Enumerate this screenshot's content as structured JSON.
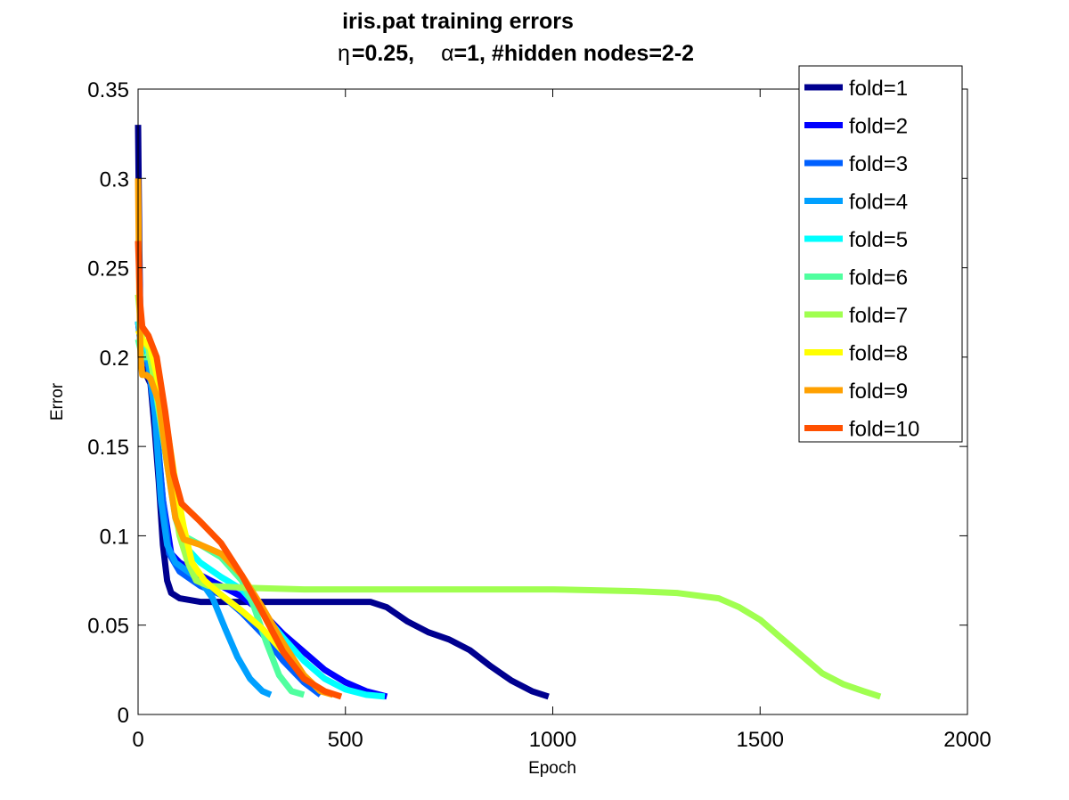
{
  "chart_data": {
    "type": "line",
    "title": "iris.pat training errors",
    "subtitle": {
      "eta_symbol": "η",
      "eta_value": "=0.25,",
      "alpha_symbol": "α",
      "alpha_value": "=1, #hidden nodes=2-2"
    },
    "xlabel": "Epoch",
    "ylabel": "Error",
    "xlim": [
      0,
      2000
    ],
    "ylim": [
      0,
      0.35
    ],
    "xticks": [
      0,
      500,
      1000,
      1500,
      2000
    ],
    "xtick_labels": [
      "0",
      "500",
      "1000",
      "1500",
      "2000"
    ],
    "yticks": [
      0,
      0.05,
      0.1,
      0.15,
      0.2,
      0.25,
      0.3,
      0.35
    ],
    "ytick_labels": [
      "0",
      "0.05",
      "0.1",
      "0.15",
      "0.2",
      "0.25",
      "0.3",
      "0.35"
    ],
    "grid": false,
    "legend_position": "top-right",
    "series": [
      {
        "name": "fold=1",
        "color": "#00008F",
        "points": [
          [
            0,
            0.33
          ],
          [
            3,
            0.26
          ],
          [
            6,
            0.21
          ],
          [
            10,
            0.195
          ],
          [
            20,
            0.19
          ],
          [
            30,
            0.185
          ],
          [
            40,
            0.16
          ],
          [
            50,
            0.13
          ],
          [
            60,
            0.095
          ],
          [
            70,
            0.075
          ],
          [
            80,
            0.068
          ],
          [
            100,
            0.065
          ],
          [
            150,
            0.063
          ],
          [
            300,
            0.063
          ],
          [
            500,
            0.063
          ],
          [
            560,
            0.063
          ],
          [
            600,
            0.06
          ],
          [
            650,
            0.052
          ],
          [
            700,
            0.046
          ],
          [
            750,
            0.042
          ],
          [
            800,
            0.036
          ],
          [
            850,
            0.027
          ],
          [
            900,
            0.019
          ],
          [
            950,
            0.013
          ],
          [
            990,
            0.01
          ]
        ]
      },
      {
        "name": "fold=2",
        "color": "#0000FF",
        "points": [
          [
            0,
            0.22
          ],
          [
            10,
            0.2
          ],
          [
            25,
            0.198
          ],
          [
            40,
            0.17
          ],
          [
            60,
            0.12
          ],
          [
            80,
            0.09
          ],
          [
            100,
            0.085
          ],
          [
            150,
            0.078
          ],
          [
            200,
            0.072
          ],
          [
            250,
            0.066
          ],
          [
            300,
            0.057
          ],
          [
            350,
            0.045
          ],
          [
            400,
            0.035
          ],
          [
            450,
            0.025
          ],
          [
            500,
            0.018
          ],
          [
            550,
            0.013
          ],
          [
            600,
            0.01
          ]
        ]
      },
      {
        "name": "fold=3",
        "color": "#0060FF",
        "points": [
          [
            0,
            0.22
          ],
          [
            10,
            0.2
          ],
          [
            25,
            0.195
          ],
          [
            45,
            0.16
          ],
          [
            60,
            0.12
          ],
          [
            75,
            0.09
          ],
          [
            100,
            0.08
          ],
          [
            150,
            0.072
          ],
          [
            200,
            0.067
          ],
          [
            250,
            0.057
          ],
          [
            300,
            0.045
          ],
          [
            350,
            0.03
          ],
          [
            400,
            0.018
          ],
          [
            440,
            0.011
          ]
        ]
      },
      {
        "name": "fold=4",
        "color": "#00A0FF",
        "points": [
          [
            0,
            0.22
          ],
          [
            10,
            0.2
          ],
          [
            25,
            0.198
          ],
          [
            40,
            0.17
          ],
          [
            55,
            0.12
          ],
          [
            70,
            0.095
          ],
          [
            90,
            0.085
          ],
          [
            120,
            0.08
          ],
          [
            150,
            0.075
          ],
          [
            180,
            0.065
          ],
          [
            210,
            0.048
          ],
          [
            240,
            0.032
          ],
          [
            270,
            0.02
          ],
          [
            300,
            0.013
          ],
          [
            320,
            0.011
          ]
        ]
      },
      {
        "name": "fold=5",
        "color": "#00FFFF",
        "points": [
          [
            0,
            0.22
          ],
          [
            10,
            0.21
          ],
          [
            30,
            0.2
          ],
          [
            50,
            0.17
          ],
          [
            70,
            0.14
          ],
          [
            90,
            0.11
          ],
          [
            110,
            0.095
          ],
          [
            150,
            0.085
          ],
          [
            200,
            0.077
          ],
          [
            250,
            0.07
          ],
          [
            300,
            0.057
          ],
          [
            350,
            0.043
          ],
          [
            400,
            0.03
          ],
          [
            450,
            0.02
          ],
          [
            500,
            0.014
          ],
          [
            550,
            0.011
          ],
          [
            595,
            0.01
          ]
        ]
      },
      {
        "name": "fold=6",
        "color": "#50FF9F",
        "points": [
          [
            0,
            0.21
          ],
          [
            10,
            0.2
          ],
          [
            30,
            0.2
          ],
          [
            50,
            0.17
          ],
          [
            70,
            0.14
          ],
          [
            90,
            0.115
          ],
          [
            110,
            0.1
          ],
          [
            150,
            0.095
          ],
          [
            200,
            0.088
          ],
          [
            250,
            0.075
          ],
          [
            280,
            0.06
          ],
          [
            310,
            0.04
          ],
          [
            340,
            0.022
          ],
          [
            370,
            0.013
          ],
          [
            400,
            0.011
          ]
        ]
      },
      {
        "name": "fold=7",
        "color": "#A0FF50",
        "points": [
          [
            0,
            0.235
          ],
          [
            10,
            0.21
          ],
          [
            25,
            0.205
          ],
          [
            45,
            0.18
          ],
          [
            65,
            0.15
          ],
          [
            85,
            0.12
          ],
          [
            100,
            0.1
          ],
          [
            120,
            0.085
          ],
          [
            140,
            0.075
          ],
          [
            170,
            0.072
          ],
          [
            250,
            0.071
          ],
          [
            400,
            0.07
          ],
          [
            600,
            0.07
          ],
          [
            800,
            0.07
          ],
          [
            1000,
            0.07
          ],
          [
            1200,
            0.069
          ],
          [
            1300,
            0.068
          ],
          [
            1400,
            0.065
          ],
          [
            1450,
            0.06
          ],
          [
            1500,
            0.053
          ],
          [
            1550,
            0.043
          ],
          [
            1600,
            0.033
          ],
          [
            1650,
            0.023
          ],
          [
            1700,
            0.017
          ],
          [
            1750,
            0.013
          ],
          [
            1790,
            0.01
          ]
        ]
      },
      {
        "name": "fold=8",
        "color": "#FFFF00",
        "points": [
          [
            0,
            0.215
          ],
          [
            10,
            0.21
          ],
          [
            30,
            0.205
          ],
          [
            50,
            0.185
          ],
          [
            70,
            0.16
          ],
          [
            90,
            0.13
          ],
          [
            110,
            0.105
          ],
          [
            130,
            0.085
          ],
          [
            160,
            0.075
          ],
          [
            200,
            0.067
          ],
          [
            250,
            0.058
          ],
          [
            300,
            0.048
          ],
          [
            350,
            0.035
          ],
          [
            400,
            0.022
          ],
          [
            440,
            0.013
          ]
        ]
      },
      {
        "name": "fold=9",
        "color": "#FFA000",
        "points": [
          [
            0,
            0.3
          ],
          [
            3,
            0.235
          ],
          [
            6,
            0.2
          ],
          [
            10,
            0.19
          ],
          [
            20,
            0.19
          ],
          [
            30,
            0.188
          ],
          [
            50,
            0.175
          ],
          [
            70,
            0.14
          ],
          [
            90,
            0.11
          ],
          [
            110,
            0.098
          ],
          [
            150,
            0.095
          ],
          [
            200,
            0.09
          ],
          [
            250,
            0.078
          ],
          [
            300,
            0.06
          ],
          [
            350,
            0.04
          ],
          [
            400,
            0.022
          ],
          [
            440,
            0.013
          ],
          [
            470,
            0.011
          ]
        ]
      },
      {
        "name": "fold=10",
        "color": "#FF5000",
        "points": [
          [
            0,
            0.265
          ],
          [
            5,
            0.23
          ],
          [
            10,
            0.217
          ],
          [
            25,
            0.212
          ],
          [
            45,
            0.2
          ],
          [
            65,
            0.17
          ],
          [
            85,
            0.135
          ],
          [
            105,
            0.118
          ],
          [
            150,
            0.108
          ],
          [
            200,
            0.096
          ],
          [
            250,
            0.078
          ],
          [
            300,
            0.057
          ],
          [
            350,
            0.035
          ],
          [
            400,
            0.02
          ],
          [
            450,
            0.013
          ],
          [
            490,
            0.01
          ]
        ]
      }
    ]
  }
}
